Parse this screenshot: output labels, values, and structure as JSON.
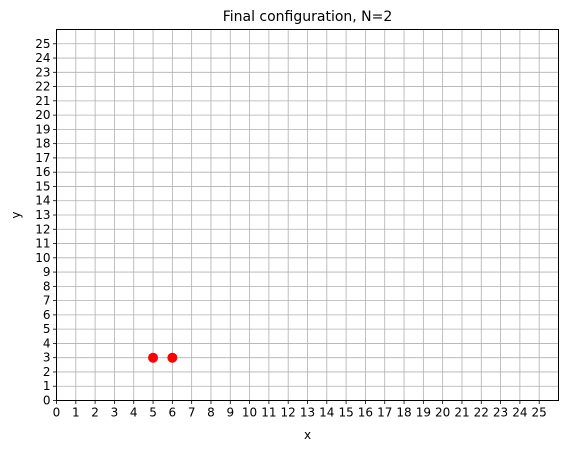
{
  "chart_data": {
    "type": "scatter",
    "title": "Final configuration, N=2",
    "xlabel": "x",
    "ylabel": "y",
    "xlim": [
      0,
      26
    ],
    "ylim": [
      0,
      26
    ],
    "x_ticks": [
      0,
      1,
      2,
      3,
      4,
      5,
      6,
      7,
      8,
      9,
      10,
      11,
      12,
      13,
      14,
      15,
      16,
      17,
      18,
      19,
      20,
      21,
      22,
      23,
      24,
      25
    ],
    "y_ticks": [
      0,
      1,
      2,
      3,
      4,
      5,
      6,
      7,
      8,
      9,
      10,
      11,
      12,
      13,
      14,
      15,
      16,
      17,
      18,
      19,
      20,
      21,
      22,
      23,
      24,
      25
    ],
    "grid": true,
    "colors": {
      "points": "#ff0000",
      "grid": "#b0b0b0"
    },
    "series": [
      {
        "x": [
          5,
          6
        ],
        "y": [
          3,
          3
        ]
      }
    ]
  }
}
